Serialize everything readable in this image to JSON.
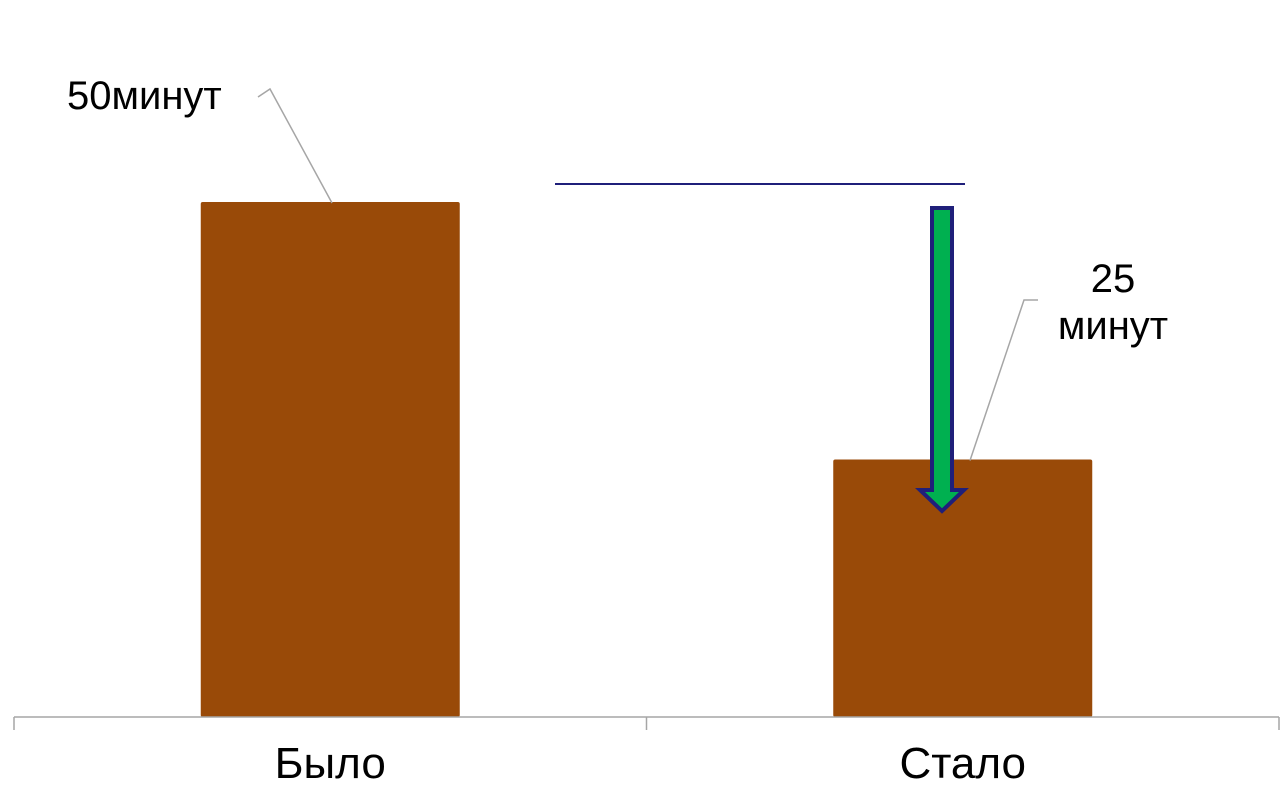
{
  "chart_data": {
    "type": "bar",
    "categories": [
      "Было",
      "Стало"
    ],
    "values": [
      50,
      25
    ],
    "data_labels": [
      [
        "50минут"
      ],
      [
        "25",
        "минут"
      ]
    ],
    "ylim": [
      0,
      50
    ],
    "grid": false,
    "legend": false
  },
  "colors": {
    "bar": "#994A08",
    "axis": "#a6a6a6",
    "leader_line": "#a6a6a6",
    "reference_line": "#1f1f7a",
    "arrow_fill": "#00b050",
    "arrow_stroke": "#1f1f7a",
    "text": "#000000"
  }
}
